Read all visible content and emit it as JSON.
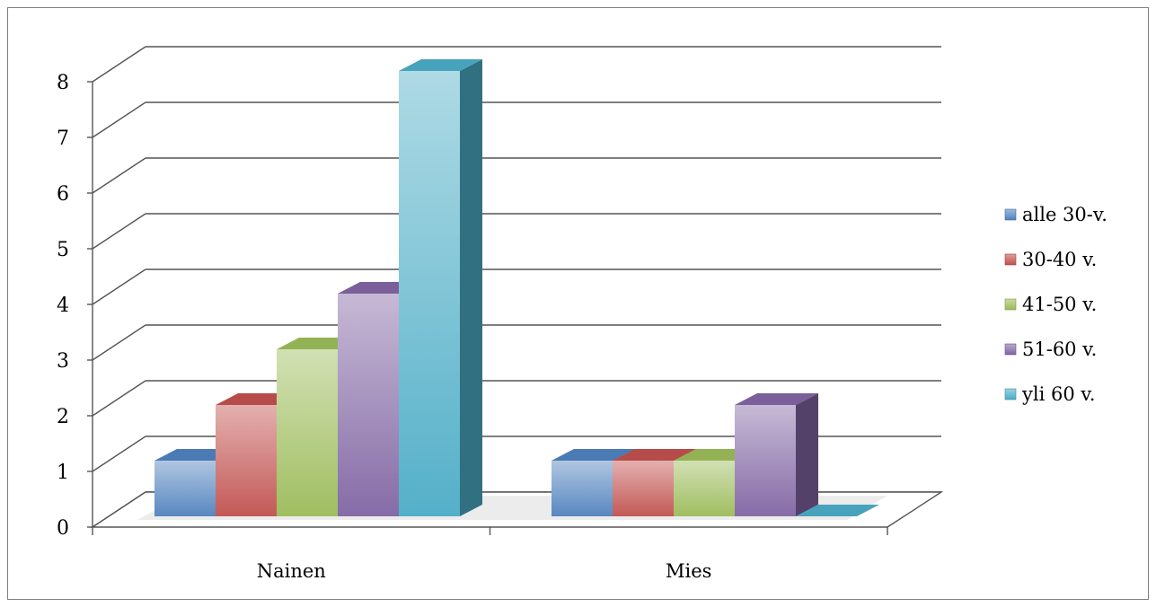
{
  "chart_data": {
    "type": "bar",
    "categories": [
      "Nainen",
      "Mies"
    ],
    "series": [
      {
        "name": "alle 30-v.",
        "values": [
          1,
          1
        ],
        "color": "#4f81bd"
      },
      {
        "name": "30-40 v.",
        "values": [
          2,
          1
        ],
        "color": "#c0504d"
      },
      {
        "name": "41-50 v.",
        "values": [
          3,
          1
        ],
        "color": "#9bbb59"
      },
      {
        "name": "51-60 v.",
        "values": [
          4,
          2
        ],
        "color": "#8064a2"
      },
      {
        "name": "yli 60 v.",
        "values": [
          8,
          0
        ],
        "color": "#4bacc6"
      }
    ],
    "yticks": [
      "0",
      "1",
      "2",
      "3",
      "4",
      "5",
      "6",
      "7",
      "8"
    ],
    "ylim": [
      0,
      8
    ],
    "grid": true,
    "legend_position": "right",
    "title": "",
    "xlabel": "",
    "ylabel": "",
    "style": "3d-clustered-column"
  }
}
